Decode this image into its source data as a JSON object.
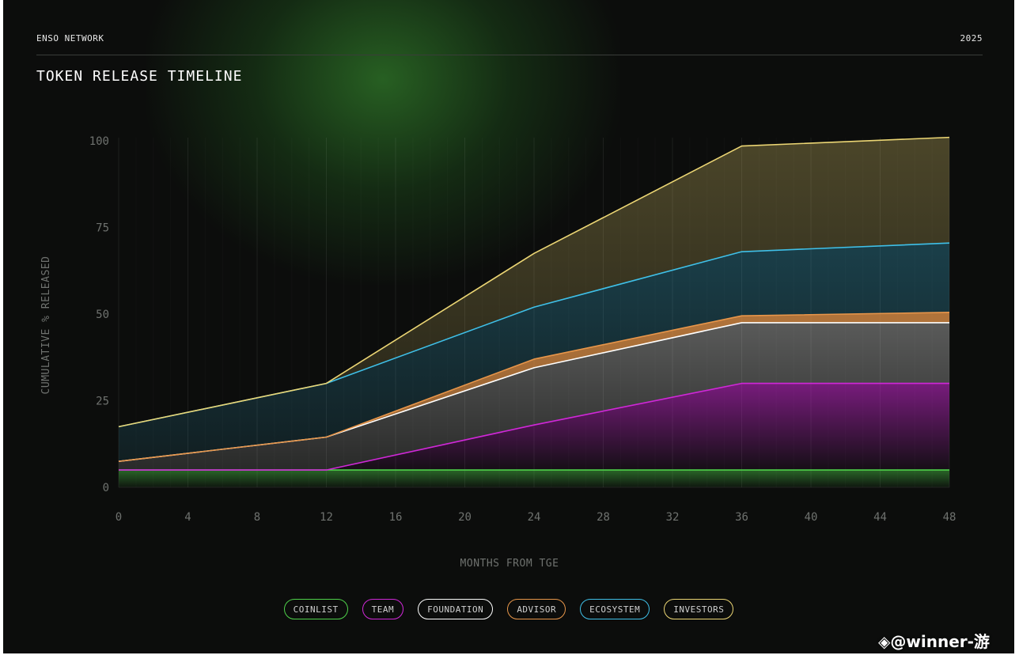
{
  "header": {
    "brand": "ENSO NETWORK",
    "year": "2025",
    "title": "TOKEN RELEASE TIMELINE"
  },
  "watermark": "◈@winner-游",
  "chart_data": {
    "type": "area",
    "stacked": true,
    "xlabel": "MONTHS FROM TGE",
    "ylabel": "CUMULATIVE % RELEASED",
    "x": [
      0,
      12,
      24,
      36,
      48
    ],
    "xticks": [
      0,
      4,
      8,
      12,
      16,
      20,
      24,
      28,
      32,
      36,
      40,
      44,
      48
    ],
    "yticks": [
      0,
      25,
      50,
      75,
      100
    ],
    "xlim": [
      0,
      48
    ],
    "ylim": [
      0,
      100
    ],
    "grid": "vertical",
    "legend_position": "bottom-center",
    "series": [
      {
        "name": "COINLIST",
        "color": "#4ed14a",
        "cumulative": [
          5,
          5,
          5,
          5,
          5
        ]
      },
      {
        "name": "TEAM",
        "color": "#d028d8",
        "cumulative": [
          5,
          5,
          18,
          30,
          30
        ]
      },
      {
        "name": "FOUNDATION",
        "color": "#ffffff",
        "cumulative": [
          7.5,
          14.5,
          34.5,
          47.5,
          47.5
        ]
      },
      {
        "name": "ADVISOR",
        "color": "#e8964a",
        "cumulative": [
          7.5,
          14.5,
          37,
          49.5,
          50.5
        ]
      },
      {
        "name": "ECOSYSTEM",
        "color": "#3fc0e8",
        "cumulative": [
          17.5,
          30,
          52,
          68,
          70.5
        ]
      },
      {
        "name": "INVESTORS",
        "color": "#ecd674",
        "cumulative": [
          17.5,
          30,
          67.5,
          98.5,
          101
        ]
      }
    ]
  }
}
